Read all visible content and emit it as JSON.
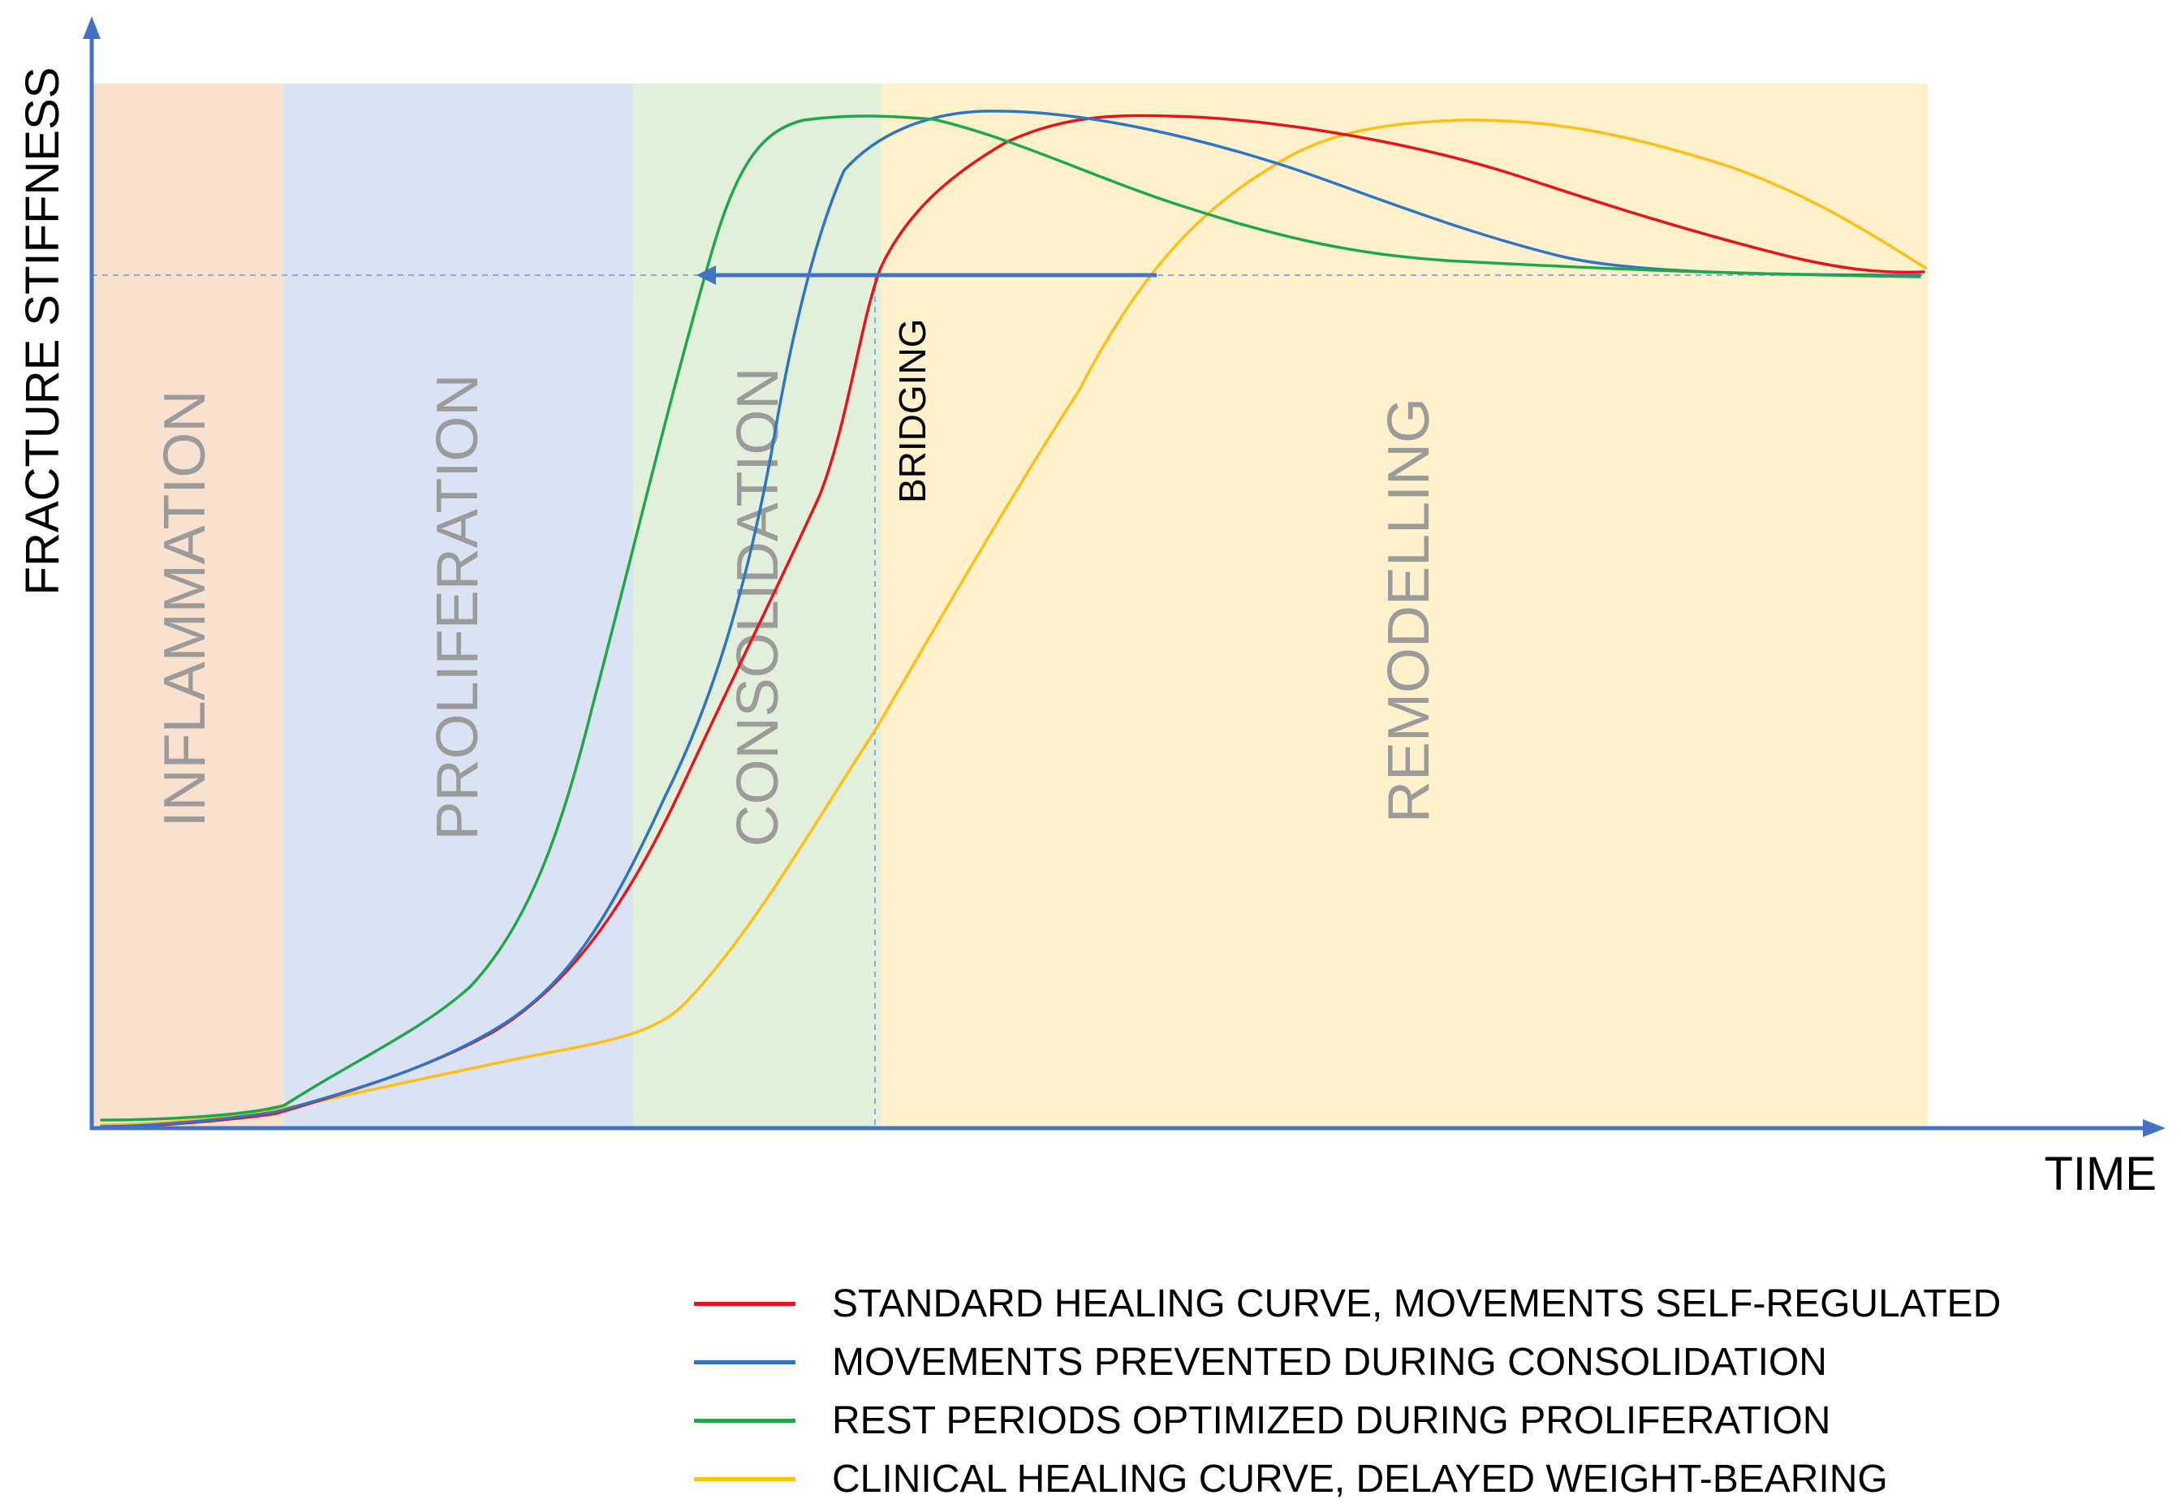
{
  "axes": {
    "y_label": "FRACTURE STIFFNESS",
    "x_label": "TIME",
    "axis_color": "#4472c4"
  },
  "phases": [
    {
      "label": "INFLAMMATION",
      "color": "#f9e1d0"
    },
    {
      "label": "PROLIFERATION",
      "color": "#dae3f3"
    },
    {
      "label": "CONSOLIDATION",
      "color": "#e2efda"
    },
    {
      "label": "REMODELLING",
      "color": "#fff1cc"
    }
  ],
  "annotations": {
    "bridging_label": "BRIDGING",
    "arrow_color": "#4472c4"
  },
  "series": [
    {
      "name": "STANDARD HEALING CURVE, MOVEMENTS SELF-REGULATED",
      "color": "#e8141a"
    },
    {
      "name": "MOVEMENTS PREVENTED DURING CONSOLIDATION",
      "color": "#2e75c4"
    },
    {
      "name": "REST PERIODS OPTIMIZED DURING PROLIFERATION",
      "color": "#1fa84a"
    },
    {
      "name": "CLINICAL HEALING CURVE, DELAYED WEIGHT-BEARING",
      "color": "#ffbf14"
    }
  ]
}
